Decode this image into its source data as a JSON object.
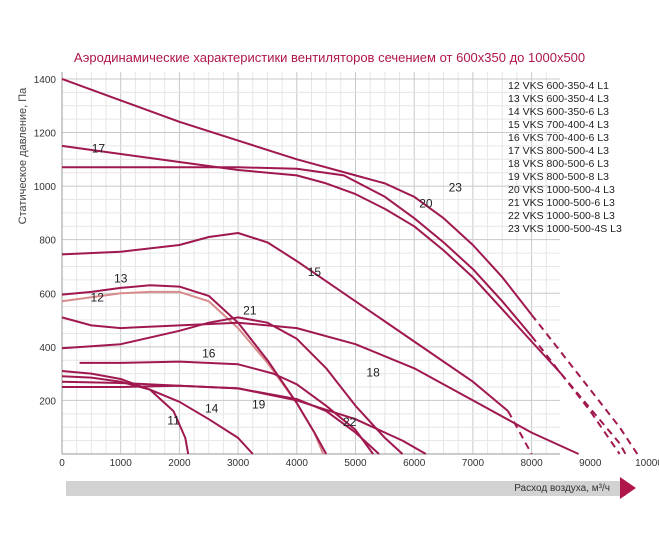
{
  "chart_data": {
    "type": "line",
    "title": "Аэродинамические характеристики вентиляторов сечением от 600x350 до 1000x500",
    "xlabel": "Расход воздуха, м³/ч",
    "ylabel": "Статическое давление, Па",
    "xlim": [
      0,
      10500
    ],
    "ylim": [
      0,
      1400
    ],
    "x_ticks": [
      "0",
      "1000",
      "2000",
      "3000",
      "4000",
      "5000",
      "6000",
      "7000",
      "8000",
      "9000",
      "10000"
    ],
    "y_ticks": [
      "200",
      "400",
      "600",
      "800",
      "1000",
      "1200",
      "1400"
    ],
    "grid": true,
    "legend_position": "top-right",
    "legend": [
      "12 VKS 600-350-4 L1",
      "13 VKS 600-350-4 L3",
      "14 VKS 600-350-6 L3",
      "15 VKS 700-400-4 L3",
      "16 VKS 700-400-6 L3",
      "17 VKS 800-500-4 L3",
      "18 VKS 800-500-6 L3",
      "19 VKS 800-500-8 L3",
      "20 VKS 1000-500-4 L3",
      "21 VKS 1000-500-6 L3",
      "22 VKS 1000-500-8 L3",
      "23 VKS 1000-500-4S L3"
    ],
    "series": [
      {
        "name": "12",
        "color": "#d98a8a",
        "label_at": [
          600,
          570
        ],
        "points": [
          [
            0,
            570
          ],
          [
            500,
            585
          ],
          [
            1000,
            600
          ],
          [
            1500,
            605
          ],
          [
            2000,
            605
          ],
          [
            2500,
            570
          ],
          [
            3000,
            470
          ],
          [
            3500,
            340
          ],
          [
            4000,
            190
          ],
          [
            4300,
            80
          ],
          [
            4450,
            0
          ]
        ]
      },
      {
        "name": "13",
        "color": "#a01850",
        "label_at": [
          1000,
          640
        ],
        "points": [
          [
            0,
            595
          ],
          [
            500,
            605
          ],
          [
            1000,
            620
          ],
          [
            1500,
            630
          ],
          [
            2000,
            625
          ],
          [
            2500,
            590
          ],
          [
            3000,
            490
          ],
          [
            3500,
            350
          ],
          [
            4000,
            190
          ],
          [
            4300,
            80
          ],
          [
            4500,
            0
          ]
        ]
      },
      {
        "name": "14",
        "color": "#a01850",
        "label_at": [
          2550,
          155
        ],
        "points": [
          [
            0,
            290
          ],
          [
            500,
            285
          ],
          [
            1000,
            270
          ],
          [
            1500,
            240
          ],
          [
            2000,
            195
          ],
          [
            2500,
            130
          ],
          [
            3000,
            60
          ],
          [
            3250,
            0
          ]
        ]
      },
      {
        "name": "15",
        "color": "#a01850",
        "label_at": [
          4300,
          665
        ],
        "points": [
          [
            0,
            745
          ],
          [
            1000,
            755
          ],
          [
            2000,
            780
          ],
          [
            2500,
            810
          ],
          [
            3000,
            825
          ],
          [
            3500,
            790
          ],
          [
            4000,
            720
          ],
          [
            5000,
            570
          ],
          [
            6000,
            420
          ],
          [
            7000,
            270
          ],
          [
            7600,
            160
          ]
        ],
        "dashed_points": [
          [
            7600,
            160
          ],
          [
            8000,
            0
          ]
        ]
      },
      {
        "name": "16",
        "color": "#a01850",
        "label_at": [
          2500,
          360
        ],
        "points": [
          [
            300,
            340
          ],
          [
            1000,
            340
          ],
          [
            2000,
            345
          ],
          [
            3000,
            335
          ],
          [
            3600,
            300
          ],
          [
            4000,
            260
          ],
          [
            4500,
            180
          ],
          [
            5000,
            90
          ],
          [
            5300,
            0
          ]
        ]
      },
      {
        "name": "17",
        "color": "#a01850",
        "label_at": [
          620,
          1125
        ],
        "points": [
          [
            0,
            1150
          ],
          [
            1000,
            1120
          ],
          [
            2000,
            1090
          ],
          [
            3000,
            1060
          ],
          [
            4000,
            1040
          ],
          [
            4500,
            1010
          ],
          [
            5000,
            970
          ],
          [
            5500,
            915
          ],
          [
            6000,
            850
          ],
          [
            6500,
            760
          ],
          [
            7000,
            660
          ],
          [
            7500,
            540
          ],
          [
            8000,
            420
          ],
          [
            8500,
            300
          ]
        ],
        "dashed_points": [
          [
            8500,
            300
          ],
          [
            9000,
            170
          ],
          [
            9500,
            40
          ],
          [
            9600,
            0
          ]
        ]
      },
      {
        "name": "18",
        "color": "#a01850",
        "label_at": [
          5300,
          290
        ],
        "points": [
          [
            0,
            510
          ],
          [
            500,
            480
          ],
          [
            1000,
            470
          ],
          [
            2000,
            480
          ],
          [
            3000,
            490
          ],
          [
            4000,
            470
          ],
          [
            5000,
            410
          ],
          [
            6000,
            320
          ],
          [
            7000,
            200
          ],
          [
            8000,
            80
          ],
          [
            8800,
            0
          ]
        ]
      },
      {
        "name": "19",
        "color": "#a01850",
        "label_at": [
          3350,
          170
        ],
        "points": [
          [
            0,
            270
          ],
          [
            1000,
            265
          ],
          [
            2000,
            255
          ],
          [
            3000,
            245
          ],
          [
            4000,
            205
          ],
          [
            4500,
            160
          ],
          [
            5000,
            80
          ],
          [
            5400,
            0
          ]
        ]
      },
      {
        "name": "20",
        "color": "#a01850",
        "label_at": [
          6200,
          920
        ],
        "points": [
          [
            0,
            1070
          ],
          [
            1000,
            1070
          ],
          [
            2000,
            1070
          ],
          [
            3000,
            1070
          ],
          [
            4000,
            1065
          ],
          [
            4800,
            1040
          ],
          [
            5500,
            960
          ],
          [
            6000,
            880
          ],
          [
            6500,
            790
          ],
          [
            7000,
            690
          ],
          [
            7500,
            570
          ],
          [
            8000,
            440
          ]
        ],
        "dashed_points": [
          [
            8000,
            440
          ],
          [
            8500,
            300
          ],
          [
            9000,
            160
          ],
          [
            9500,
            0
          ]
        ]
      },
      {
        "name": "21",
        "color": "#a01850",
        "label_at": [
          3200,
          520
        ],
        "points": [
          [
            0,
            395
          ],
          [
            1000,
            410
          ],
          [
            2000,
            460
          ],
          [
            2500,
            490
          ],
          [
            3000,
            510
          ],
          [
            3500,
            490
          ],
          [
            4000,
            430
          ],
          [
            4500,
            320
          ],
          [
            5000,
            180
          ],
          [
            5500,
            60
          ],
          [
            5800,
            0
          ]
        ]
      },
      {
        "name": "22",
        "color": "#a01850",
        "label_at": [
          4900,
          105
        ],
        "points": [
          [
            0,
            250
          ],
          [
            1000,
            250
          ],
          [
            2000,
            255
          ],
          [
            3000,
            245
          ],
          [
            4000,
            200
          ],
          [
            5000,
            130
          ],
          [
            5800,
            50
          ],
          [
            6200,
            0
          ]
        ]
      },
      {
        "name": "23",
        "color": "#a01850",
        "label_at": [
          6700,
          980
        ],
        "points": [
          [
            0,
            1400
          ],
          [
            1000,
            1320
          ],
          [
            2000,
            1240
          ],
          [
            3000,
            1170
          ],
          [
            4000,
            1100
          ],
          [
            5000,
            1040
          ],
          [
            5500,
            1010
          ],
          [
            6000,
            960
          ],
          [
            6500,
            880
          ],
          [
            7000,
            780
          ],
          [
            7500,
            660
          ],
          [
            8000,
            520
          ]
        ],
        "dashed_points": [
          [
            8000,
            520
          ],
          [
            8500,
            380
          ],
          [
            9000,
            240
          ],
          [
            9500,
            100
          ],
          [
            9800,
            0
          ]
        ]
      },
      {
        "name": "11",
        "color": "#a01850",
        "label_at": [
          1900,
          110
        ],
        "points": [
          [
            0,
            310
          ],
          [
            500,
            300
          ],
          [
            1000,
            280
          ],
          [
            1500,
            240
          ],
          [
            1900,
            160
          ],
          [
            2100,
            60
          ],
          [
            2150,
            0
          ]
        ]
      }
    ]
  }
}
